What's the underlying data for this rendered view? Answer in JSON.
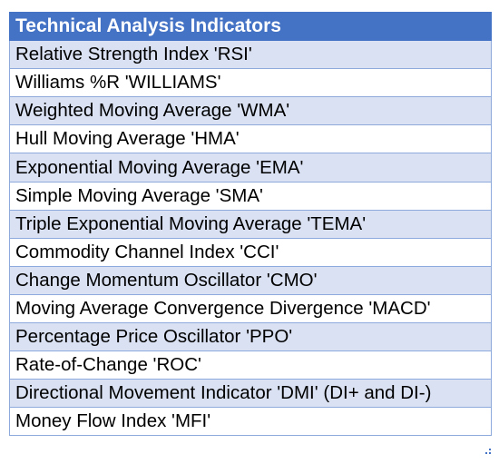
{
  "table": {
    "header": "Technical Analysis Indicators",
    "rows": [
      "Relative Strength Index 'RSI'",
      "Williams %R 'WILLIAMS'",
      "Weighted Moving Average 'WMA'",
      "Hull Moving Average 'HMA'",
      "Exponential Moving Average 'EMA'",
      "Simple Moving Average 'SMA'",
      "Triple Exponential Moving Average 'TEMA'",
      "Commodity Channel Index 'CCI'",
      "Change Momentum Oscillator 'CMO'",
      "Moving Average Convergence Divergence 'MACD'",
      "Percentage Price Oscillator 'PPO'",
      "Rate-of-Change 'ROC'",
      "Directional Movement Indicator 'DMI' (DI+ and DI-)",
      "Money Flow Index 'MFI'"
    ]
  },
  "colors": {
    "header_bg": "#4472c4",
    "header_text": "#ffffff",
    "band_row": "#d9e1f2",
    "plain_row": "#ffffff",
    "border": "#8ea9db"
  }
}
